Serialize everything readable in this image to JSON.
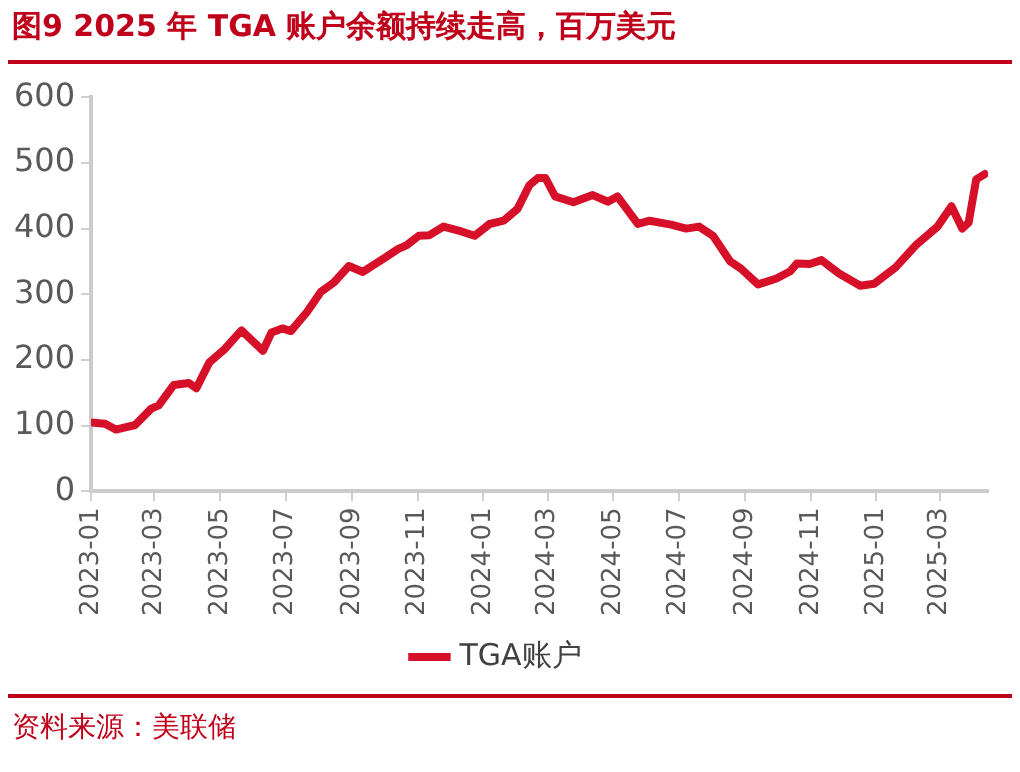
{
  "chart_data": {
    "type": "line",
    "title": "图9  2025 年 TGA 账户余额持续走高，百万美元",
    "annotations": [
      "资料来源：美联储"
    ],
    "x": [
      "2023-01-01",
      "2023-01-14",
      "2023-01-24",
      "2023-02-11",
      "2023-02-26",
      "2023-03-05",
      "2023-03-19",
      "2023-04-02",
      "2023-04-09",
      "2023-04-21",
      "2023-05-05",
      "2023-05-21",
      "2023-06-10",
      "2023-06-18",
      "2023-06-28",
      "2023-07-06",
      "2023-07-21",
      "2023-08-03",
      "2023-08-15",
      "2023-08-29",
      "2023-09-11",
      "2023-10-01",
      "2023-10-14",
      "2023-10-22",
      "2023-11-02",
      "2023-11-12",
      "2023-11-25",
      "2023-12-11",
      "2023-12-24",
      "2024-01-07",
      "2024-01-20",
      "2024-02-02",
      "2024-02-13",
      "2024-02-21",
      "2024-02-28",
      "2024-03-08",
      "2024-03-25",
      "2024-04-12",
      "2024-04-26",
      "2024-05-05",
      "2024-05-24",
      "2024-06-04",
      "2024-06-24",
      "2024-07-08",
      "2024-07-20",
      "2024-08-02",
      "2024-08-18",
      "2024-08-28",
      "2024-09-13",
      "2024-09-30",
      "2024-10-13",
      "2024-10-19",
      "2024-10-31",
      "2024-11-11",
      "2024-11-27",
      "2024-12-17",
      "2024-12-30",
      "2025-01-19",
      "2025-02-07",
      "2025-02-27",
      "2025-03-12",
      "2025-03-22",
      "2025-03-28",
      "2025-04-04",
      "2025-04-12"
    ],
    "series": [
      {
        "name": "TGA账户",
        "color": "#d7102a",
        "values": [
          105,
          103,
          94,
          101,
          126,
          131,
          162,
          165,
          157,
          196,
          216,
          245,
          214,
          242,
          248,
          244,
          273,
          304,
          318,
          343,
          334,
          355,
          369,
          375,
          389,
          390,
          403,
          396,
          389,
          407,
          412,
          430,
          466,
          477,
          477,
          449,
          440,
          451,
          441,
          449,
          407,
          412,
          406,
          400,
          403,
          389,
          350,
          339,
          315,
          324,
          335,
          347,
          346,
          352,
          332,
          313,
          316,
          341,
          375,
          403,
          434,
          400,
          409,
          475,
          483
        ]
      }
    ],
    "xlim": [
      "2023-01-01",
      "2025-04-15"
    ],
    "xticks": [
      "2023-01",
      "2023-03",
      "2023-05",
      "2023-07",
      "2023-09",
      "2023-11",
      "2024-01",
      "2024-03",
      "2024-05",
      "2024-07",
      "2024-09",
      "2024-11",
      "2025-01",
      "2025-03"
    ],
    "ylim": [
      0,
      600
    ],
    "yticks": [
      0,
      100,
      200,
      300,
      400,
      500,
      600
    ],
    "legend": "bottom",
    "marker": "none",
    "line_style": "solid"
  }
}
